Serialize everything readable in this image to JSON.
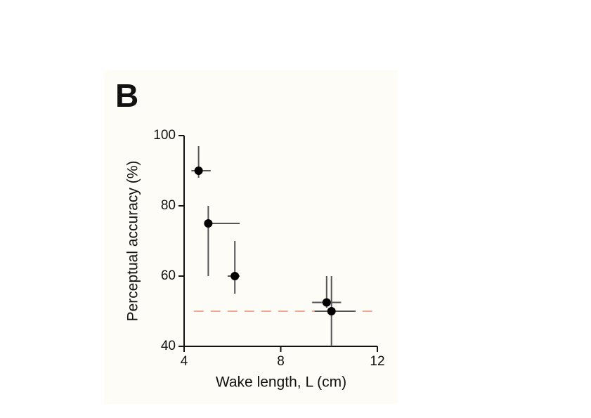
{
  "chart_data": {
    "type": "scatter",
    "panel_label": "B",
    "xlabel": "Wake length, L (cm)",
    "ylabel": "Perceptual accuracy (%)",
    "xlim": [
      4,
      12
    ],
    "xticks": [
      4,
      8,
      12
    ],
    "ylim": [
      40,
      100
    ],
    "yticks": [
      40,
      60,
      80,
      100
    ],
    "x": [
      4.6,
      5.0,
      6.1,
      9.9,
      10.1
    ],
    "values": [
      90,
      75,
      60,
      52.5,
      50
    ],
    "xlow": [
      4.3,
      5.0,
      5.8,
      9.3,
      9.4
    ],
    "xhigh": [
      5.1,
      6.3,
      6.3,
      10.5,
      11.1
    ],
    "ylow": [
      88,
      60,
      55,
      51,
      40
    ],
    "yhigh": [
      97,
      80,
      70,
      60,
      60
    ],
    "color": "#000000",
    "errorbar_color": "#555555",
    "reference_line": {
      "y": 50,
      "x": [
        4.4,
        12
      ],
      "color": "#f0a890"
    }
  }
}
